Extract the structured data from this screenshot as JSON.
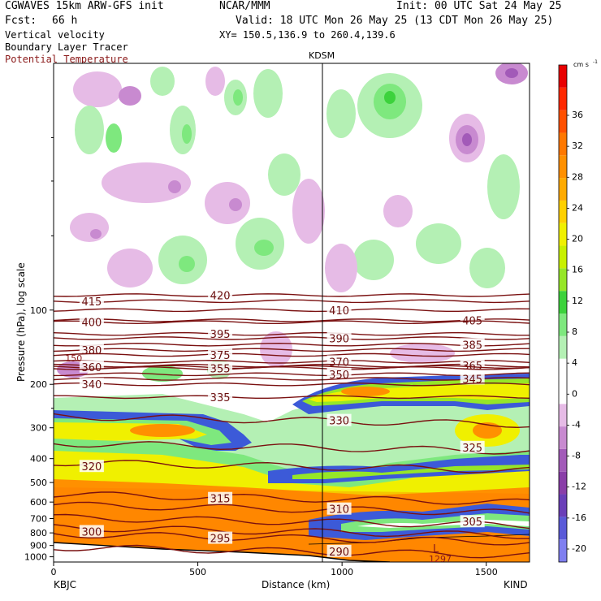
{
  "header": {
    "title": "CGWAVES 15km ARW-GFS init",
    "org": "NCAR/MMM",
    "init": "Init: 00 UTC Sat 24 May 25",
    "fcst_label": "Fcst:",
    "fcst_value": "66 h",
    "valid": "Valid: 18 UTC Mon 26 May 25 (13 CDT Mon 26 May 25)",
    "field1": "Vertical velocity",
    "xy": "XY= 150.5,136.9 to 260.4,139.6",
    "field2": "Boundary Layer Tracer",
    "field3": "Potential Temperature",
    "field3_color": "#8b1a1a"
  },
  "chart_data": {
    "type": "cross-section",
    "station_marker": "KDSM",
    "x_axis": {
      "label": "Distance (km)",
      "range": [
        0,
        1650
      ],
      "ticks": [
        0,
        500,
        1000,
        1500
      ],
      "left_station": "KBJC",
      "right_station": "KIND",
      "marker_at": 930
    },
    "y_axis": {
      "label": "Pressure (hPa), log scale",
      "scale": "log",
      "range": [
        1050,
        10
      ],
      "ticks": [
        100,
        200,
        300,
        400,
        500,
        600,
        700,
        800,
        900,
        1000
      ]
    },
    "colorbar": {
      "unit": "cm s",
      "unit_exp": "-1",
      "tick_labels": [
        "36",
        "32",
        "28",
        "24",
        "20",
        "16",
        "12",
        "8",
        "4",
        "0",
        "-4",
        "-8",
        "-12",
        "-16",
        "-20"
      ],
      "colors": [
        "#7f7ff0",
        "#5a5ad8",
        "#6a3fb8",
        "#8a3ea8",
        "#a25ab8",
        "#c88ad0",
        "#e6bbe6",
        "#ffffff",
        "#ffffff",
        "#b4f0b4",
        "#7ee87e",
        "#3cd23c",
        "#96e628",
        "#c8f000",
        "#f0f000",
        "#ffd000",
        "#ffaa00",
        "#ff9000",
        "#ff7800",
        "#ff5000",
        "#ff2800",
        "#e80000"
      ]
    },
    "isentropes": [
      {
        "label": "415",
        "pressure": 92
      },
      {
        "label": "420",
        "pressure": 87
      },
      {
        "label": "410",
        "pressure": 100
      },
      {
        "label": "405",
        "pressure": 110
      },
      {
        "label": "400",
        "pressure": 112
      },
      {
        "label": "395",
        "pressure": 125
      },
      {
        "label": "390",
        "pressure": 130
      },
      {
        "label": "385",
        "pressure": 138
      },
      {
        "label": "380",
        "pressure": 145
      },
      {
        "label": "375",
        "pressure": 152
      },
      {
        "label": "370",
        "pressure": 162
      },
      {
        "label": "365",
        "pressure": 168
      },
      {
        "label": "360",
        "pressure": 170
      },
      {
        "label": "355",
        "pressure": 172
      },
      {
        "label": "350",
        "pressure": 182
      },
      {
        "label": "345",
        "pressure": 190
      },
      {
        "label": "340",
        "pressure": 200
      },
      {
        "label": "335",
        "pressure": 225
      },
      {
        "label": "330",
        "pressure": 280
      },
      {
        "label": "325",
        "pressure": 360
      },
      {
        "label": "320",
        "pressure": 430
      },
      {
        "label": "315",
        "pressure": 580
      },
      {
        "label": "310",
        "pressure": 640
      },
      {
        "label": "305",
        "pressure": 720
      },
      {
        "label": "300",
        "pressure": 790
      },
      {
        "label": "295",
        "pressure": 840
      },
      {
        "label": "290",
        "pressure": 950
      },
      {
        "label": "150",
        "pressure": 158
      }
    ],
    "surface_labels": {
      "low": "L",
      "low_value": "1297"
    }
  }
}
